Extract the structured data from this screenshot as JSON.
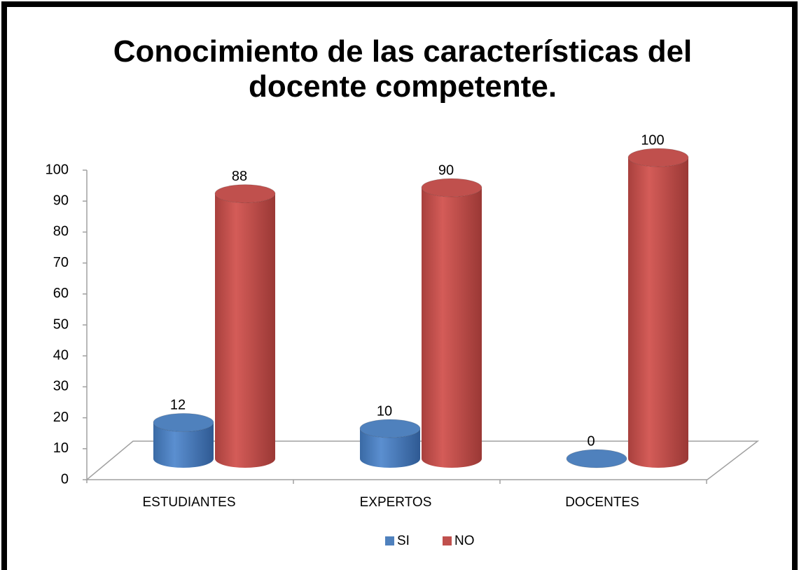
{
  "chart_data": {
    "type": "bar3d",
    "title": "Conocimiento de las características del docente competente.",
    "categories": [
      "ESTUDIANTES",
      "EXPERTOS",
      "DOCENTES"
    ],
    "series": [
      {
        "name": "SI",
        "color": "#4f81bd",
        "values": [
          12,
          10,
          0
        ]
      },
      {
        "name": "NO",
        "color": "#c0504d",
        "values": [
          88,
          90,
          100
        ]
      }
    ],
    "ylim": [
      0,
      100
    ],
    "yticks": [
      0,
      10,
      20,
      30,
      40,
      50,
      60,
      70,
      80,
      90,
      100
    ],
    "grid": false,
    "legend": "bottom",
    "data_labels": true
  }
}
